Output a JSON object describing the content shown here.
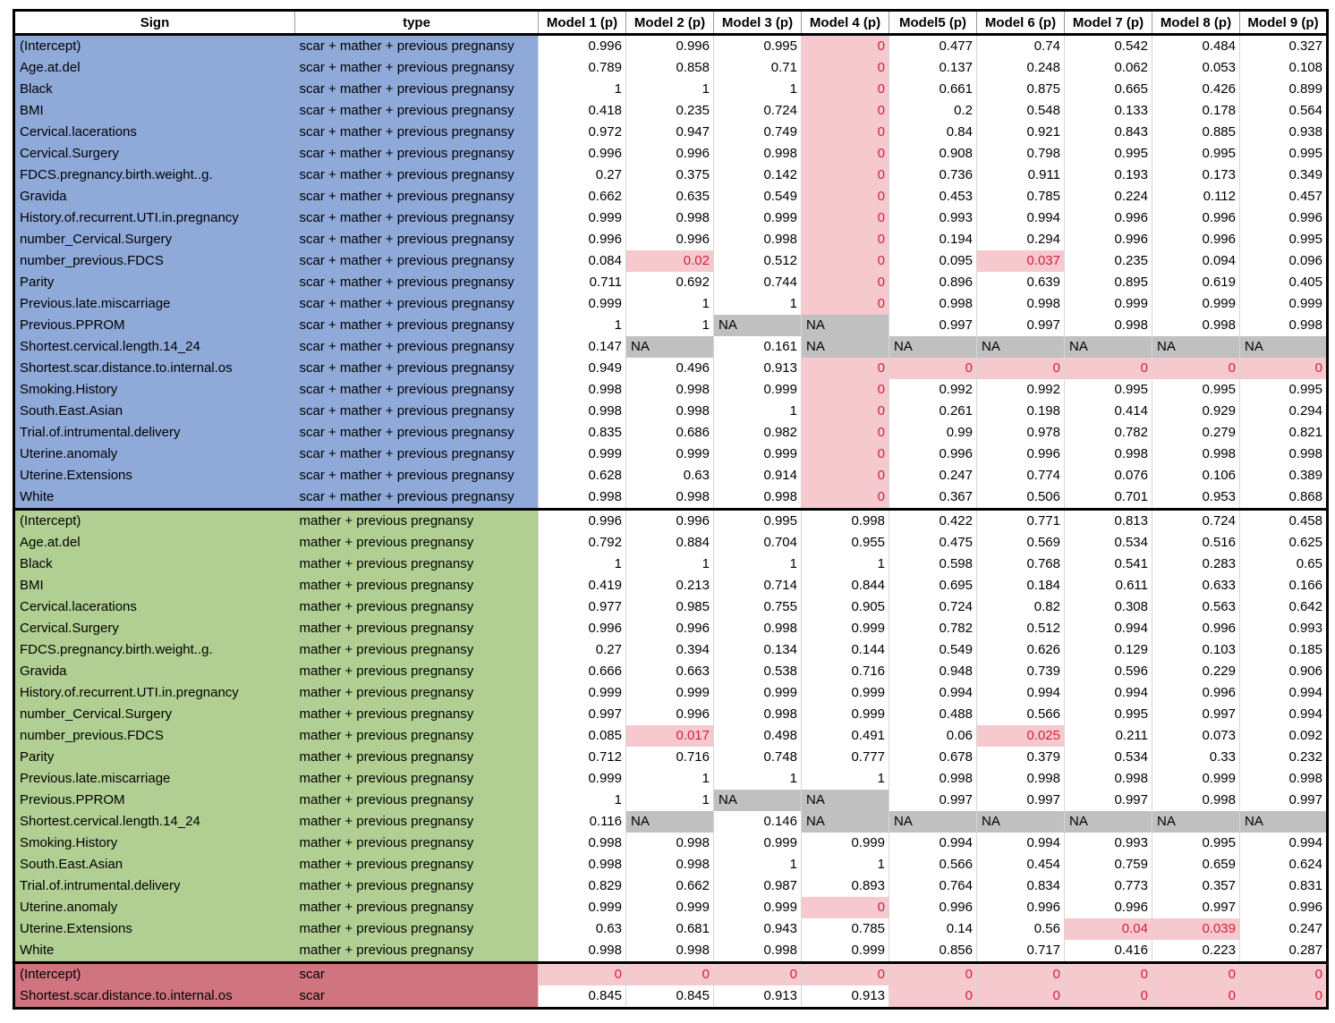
{
  "headers": [
    "Sign",
    "type",
    "Model 1 (p)",
    "Model 2 (p)",
    "Model 3 (p)",
    "Model 4 (p)",
    "Model5 (p)",
    "Model 6 (p)",
    "Model 7 (p)",
    "Model 8 (p)",
    "Model 9 (p)"
  ],
  "highlight_color": "#f6c9cf",
  "na_color": "#c0c0c0",
  "groups": [
    {
      "color": "#8fa9d9",
      "type": "scar + mather + previous pregnansy",
      "rows": [
        {
          "sign": "(Intercept)",
          "values": [
            "0.996",
            "0.996",
            "0.995",
            "0",
            "0.477",
            "0.74",
            "0.542",
            "0.484",
            "0.327"
          ]
        },
        {
          "sign": "Age.at.del",
          "values": [
            "0.789",
            "0.858",
            "0.71",
            "0",
            "0.137",
            "0.248",
            "0.062",
            "0.053",
            "0.108"
          ]
        },
        {
          "sign": "Black",
          "values": [
            "1",
            "1",
            "1",
            "0",
            "0.661",
            "0.875",
            "0.665",
            "0.426",
            "0.899"
          ]
        },
        {
          "sign": "BMI",
          "values": [
            "0.418",
            "0.235",
            "0.724",
            "0",
            "0.2",
            "0.548",
            "0.133",
            "0.178",
            "0.564"
          ]
        },
        {
          "sign": "Cervical.lacerations",
          "values": [
            "0.972",
            "0.947",
            "0.749",
            "0",
            "0.84",
            "0.921",
            "0.843",
            "0.885",
            "0.938"
          ]
        },
        {
          "sign": "Cervical.Surgery",
          "values": [
            "0.996",
            "0.996",
            "0.998",
            "0",
            "0.908",
            "0.798",
            "0.995",
            "0.995",
            "0.995"
          ]
        },
        {
          "sign": "FDCS.pregnancy.birth.weight..g.",
          "values": [
            "0.27",
            "0.375",
            "0.142",
            "0",
            "0.736",
            "0.911",
            "0.193",
            "0.173",
            "0.349"
          ]
        },
        {
          "sign": "Gravida",
          "values": [
            "0.662",
            "0.635",
            "0.549",
            "0",
            "0.453",
            "0.785",
            "0.224",
            "0.112",
            "0.457"
          ]
        },
        {
          "sign": "History.of.recurrent.UTI.in.pregnancy",
          "values": [
            "0.999",
            "0.998",
            "0.999",
            "0",
            "0.993",
            "0.994",
            "0.996",
            "0.996",
            "0.996"
          ]
        },
        {
          "sign": "number_Cervical.Surgery",
          "values": [
            "0.996",
            "0.996",
            "0.998",
            "0",
            "0.194",
            "0.294",
            "0.996",
            "0.996",
            "0.995"
          ]
        },
        {
          "sign": "number_previous.FDCS",
          "values": [
            "0.084",
            "0.02",
            "0.512",
            "0",
            "0.095",
            "0.037",
            "0.235",
            "0.094",
            "0.096"
          ]
        },
        {
          "sign": "Parity",
          "values": [
            "0.711",
            "0.692",
            "0.744",
            "0",
            "0.896",
            "0.639",
            "0.895",
            "0.619",
            "0.405"
          ]
        },
        {
          "sign": "Previous.late.miscarriage",
          "values": [
            "0.999",
            "1",
            "1",
            "0",
            "0.998",
            "0.998",
            "0.999",
            "0.999",
            "0.999"
          ]
        },
        {
          "sign": "Previous.PPROM",
          "values": [
            "1",
            "1",
            "NA",
            "NA",
            "0.997",
            "0.997",
            "0.998",
            "0.998",
            "0.998"
          ]
        },
        {
          "sign": "Shortest.cervical.length.14_24",
          "values": [
            "0.147",
            "NA",
            "0.161",
            "NA",
            "NA",
            "NA",
            "NA",
            "NA",
            "NA"
          ]
        },
        {
          "sign": "Shortest.scar.distance.to.internal.os",
          "values": [
            "0.949",
            "0.496",
            "0.913",
            "0",
            "0",
            "0",
            "0",
            "0",
            "0"
          ]
        },
        {
          "sign": "Smoking.History",
          "values": [
            "0.998",
            "0.998",
            "0.999",
            "0",
            "0.992",
            "0.992",
            "0.995",
            "0.995",
            "0.995"
          ]
        },
        {
          "sign": "South.East.Asian",
          "values": [
            "0.998",
            "0.998",
            "1",
            "0",
            "0.261",
            "0.198",
            "0.414",
            "0.929",
            "0.294"
          ]
        },
        {
          "sign": "Trial.of.intrumental.delivery",
          "values": [
            "0.835",
            "0.686",
            "0.982",
            "0",
            "0.99",
            "0.978",
            "0.782",
            "0.279",
            "0.821"
          ]
        },
        {
          "sign": "Uterine.anomaly",
          "values": [
            "0.999",
            "0.999",
            "0.999",
            "0",
            "0.996",
            "0.996",
            "0.998",
            "0.998",
            "0.998"
          ]
        },
        {
          "sign": "Uterine.Extensions",
          "values": [
            "0.628",
            "0.63",
            "0.914",
            "0",
            "0.247",
            "0.774",
            "0.076",
            "0.106",
            "0.389"
          ]
        },
        {
          "sign": "White",
          "values": [
            "0.998",
            "0.998",
            "0.998",
            "0",
            "0.367",
            "0.506",
            "0.701",
            "0.953",
            "0.868"
          ]
        }
      ]
    },
    {
      "color": "#b1cf92",
      "type": "mather + previous pregnansy",
      "rows": [
        {
          "sign": "(Intercept)",
          "values": [
            "0.996",
            "0.996",
            "0.995",
            "0.998",
            "0.422",
            "0.771",
            "0.813",
            "0.724",
            "0.458"
          ]
        },
        {
          "sign": "Age.at.del",
          "values": [
            "0.792",
            "0.884",
            "0.704",
            "0.955",
            "0.475",
            "0.569",
            "0.534",
            "0.516",
            "0.625"
          ]
        },
        {
          "sign": "Black",
          "values": [
            "1",
            "1",
            "1",
            "1",
            "0.598",
            "0.768",
            "0.541",
            "0.283",
            "0.65"
          ]
        },
        {
          "sign": "BMI",
          "values": [
            "0.419",
            "0.213",
            "0.714",
            "0.844",
            "0.695",
            "0.184",
            "0.611",
            "0.633",
            "0.166"
          ]
        },
        {
          "sign": "Cervical.lacerations",
          "values": [
            "0.977",
            "0.985",
            "0.755",
            "0.905",
            "0.724",
            "0.82",
            "0.308",
            "0.563",
            "0.642"
          ]
        },
        {
          "sign": "Cervical.Surgery",
          "values": [
            "0.996",
            "0.996",
            "0.998",
            "0.999",
            "0.782",
            "0.512",
            "0.994",
            "0.996",
            "0.993"
          ]
        },
        {
          "sign": "FDCS.pregnancy.birth.weight..g.",
          "values": [
            "0.27",
            "0.394",
            "0.134",
            "0.144",
            "0.549",
            "0.626",
            "0.129",
            "0.103",
            "0.185"
          ]
        },
        {
          "sign": "Gravida",
          "values": [
            "0.666",
            "0.663",
            "0.538",
            "0.716",
            "0.948",
            "0.739",
            "0.596",
            "0.229",
            "0.906"
          ]
        },
        {
          "sign": "History.of.recurrent.UTI.in.pregnancy",
          "values": [
            "0.999",
            "0.999",
            "0.999",
            "0.999",
            "0.994",
            "0.994",
            "0.994",
            "0.996",
            "0.994"
          ]
        },
        {
          "sign": "number_Cervical.Surgery",
          "values": [
            "0.997",
            "0.996",
            "0.998",
            "0.999",
            "0.488",
            "0.566",
            "0.995",
            "0.997",
            "0.994"
          ]
        },
        {
          "sign": "number_previous.FDCS",
          "values": [
            "0.085",
            "0.017",
            "0.498",
            "0.491",
            "0.06",
            "0.025",
            "0.211",
            "0.073",
            "0.092"
          ]
        },
        {
          "sign": "Parity",
          "values": [
            "0.712",
            "0.716",
            "0.748",
            "0.777",
            "0.678",
            "0.379",
            "0.534",
            "0.33",
            "0.232"
          ]
        },
        {
          "sign": "Previous.late.miscarriage",
          "values": [
            "0.999",
            "1",
            "1",
            "1",
            "0.998",
            "0.998",
            "0.998",
            "0.999",
            "0.998"
          ]
        },
        {
          "sign": "Previous.PPROM",
          "values": [
            "1",
            "1",
            "NA",
            "NA",
            "0.997",
            "0.997",
            "0.997",
            "0.998",
            "0.997"
          ]
        },
        {
          "sign": "Shortest.cervical.length.14_24",
          "values": [
            "0.116",
            "NA",
            "0.146",
            "NA",
            "NA",
            "NA",
            "NA",
            "NA",
            "NA"
          ]
        },
        {
          "sign": "Smoking.History",
          "values": [
            "0.998",
            "0.998",
            "0.999",
            "0.999",
            "0.994",
            "0.994",
            "0.993",
            "0.995",
            "0.994"
          ]
        },
        {
          "sign": "South.East.Asian",
          "values": [
            "0.998",
            "0.998",
            "1",
            "1",
            "0.566",
            "0.454",
            "0.759",
            "0.659",
            "0.624"
          ]
        },
        {
          "sign": "Trial.of.intrumental.delivery",
          "values": [
            "0.829",
            "0.662",
            "0.987",
            "0.893",
            "0.764",
            "0.834",
            "0.773",
            "0.357",
            "0.831"
          ]
        },
        {
          "sign": "Uterine.anomaly",
          "values": [
            "0.999",
            "0.999",
            "0.999",
            "0",
            "0.996",
            "0.996",
            "0.996",
            "0.997",
            "0.996"
          ]
        },
        {
          "sign": "Uterine.Extensions",
          "values": [
            "0.63",
            "0.681",
            "0.943",
            "0.785",
            "0.14",
            "0.56",
            "0.04",
            "0.039",
            "0.247"
          ]
        },
        {
          "sign": "White",
          "values": [
            "0.998",
            "0.998",
            "0.998",
            "0.999",
            "0.856",
            "0.717",
            "0.416",
            "0.223",
            "0.287"
          ]
        }
      ]
    },
    {
      "color": "#d07480",
      "type": "scar",
      "rows": [
        {
          "sign": "(Intercept)",
          "values": [
            "0",
            "0",
            "0",
            "0",
            "0",
            "0",
            "0",
            "0",
            "0"
          ]
        },
        {
          "sign": "Shortest.scar.distance.to.internal.os",
          "values": [
            "0.845",
            "0.845",
            "0.913",
            "0.913",
            "0",
            "0",
            "0",
            "0",
            "0"
          ]
        }
      ]
    }
  ]
}
